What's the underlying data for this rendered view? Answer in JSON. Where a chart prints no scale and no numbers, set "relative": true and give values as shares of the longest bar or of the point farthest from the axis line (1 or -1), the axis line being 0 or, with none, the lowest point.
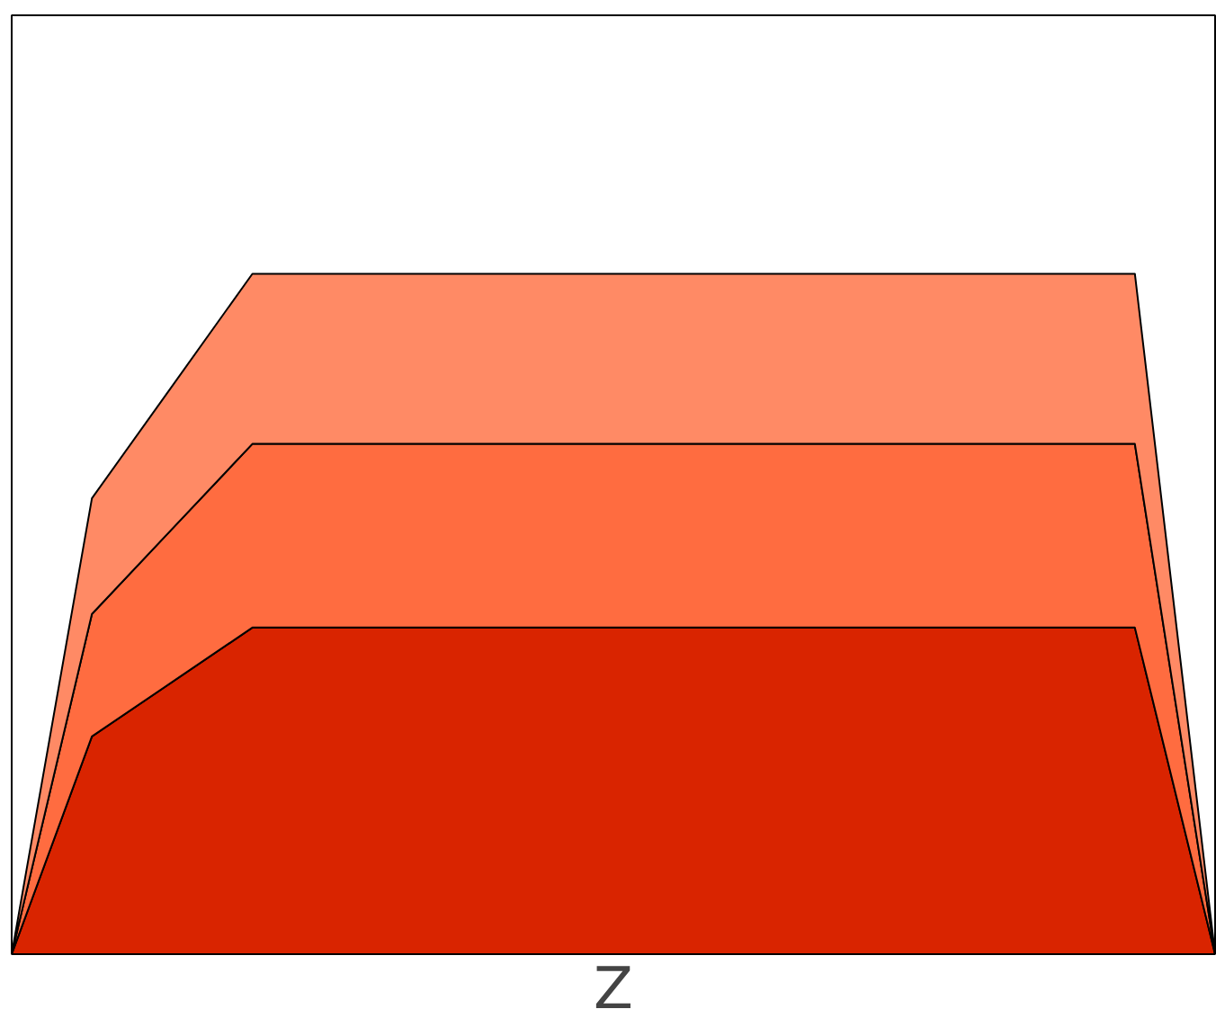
{
  "chart_data": {
    "type": "area",
    "stacked": true,
    "relative": true,
    "xlabel": "Z",
    "categories": [
      null,
      null,
      null,
      null,
      null,
      null,
      null,
      null,
      null,
      null,
      null,
      null,
      null,
      null,
      null,
      null
    ],
    "series": [
      {
        "color": "#d92400",
        "values": [
          0,
          0.32,
          0.4,
          0.48,
          0.48,
          0.48,
          0.48,
          0.48,
          0.48,
          0.48,
          0.48,
          0.48,
          0.48,
          0.48,
          0.48,
          0
        ]
      },
      {
        "color": "#ff6c40",
        "values": [
          0,
          0.18,
          0.225,
          0.27,
          0.27,
          0.27,
          0.27,
          0.27,
          0.27,
          0.27,
          0.27,
          0.27,
          0.27,
          0.27,
          0.27,
          0
        ]
      },
      {
        "color": "#ff8a65",
        "values": [
          0,
          0.17,
          0.21,
          0.25,
          0.25,
          0.25,
          0.25,
          0.25,
          0.25,
          0.25,
          0.25,
          0.25,
          0.25,
          0.25,
          0.25,
          0
        ]
      }
    ]
  }
}
